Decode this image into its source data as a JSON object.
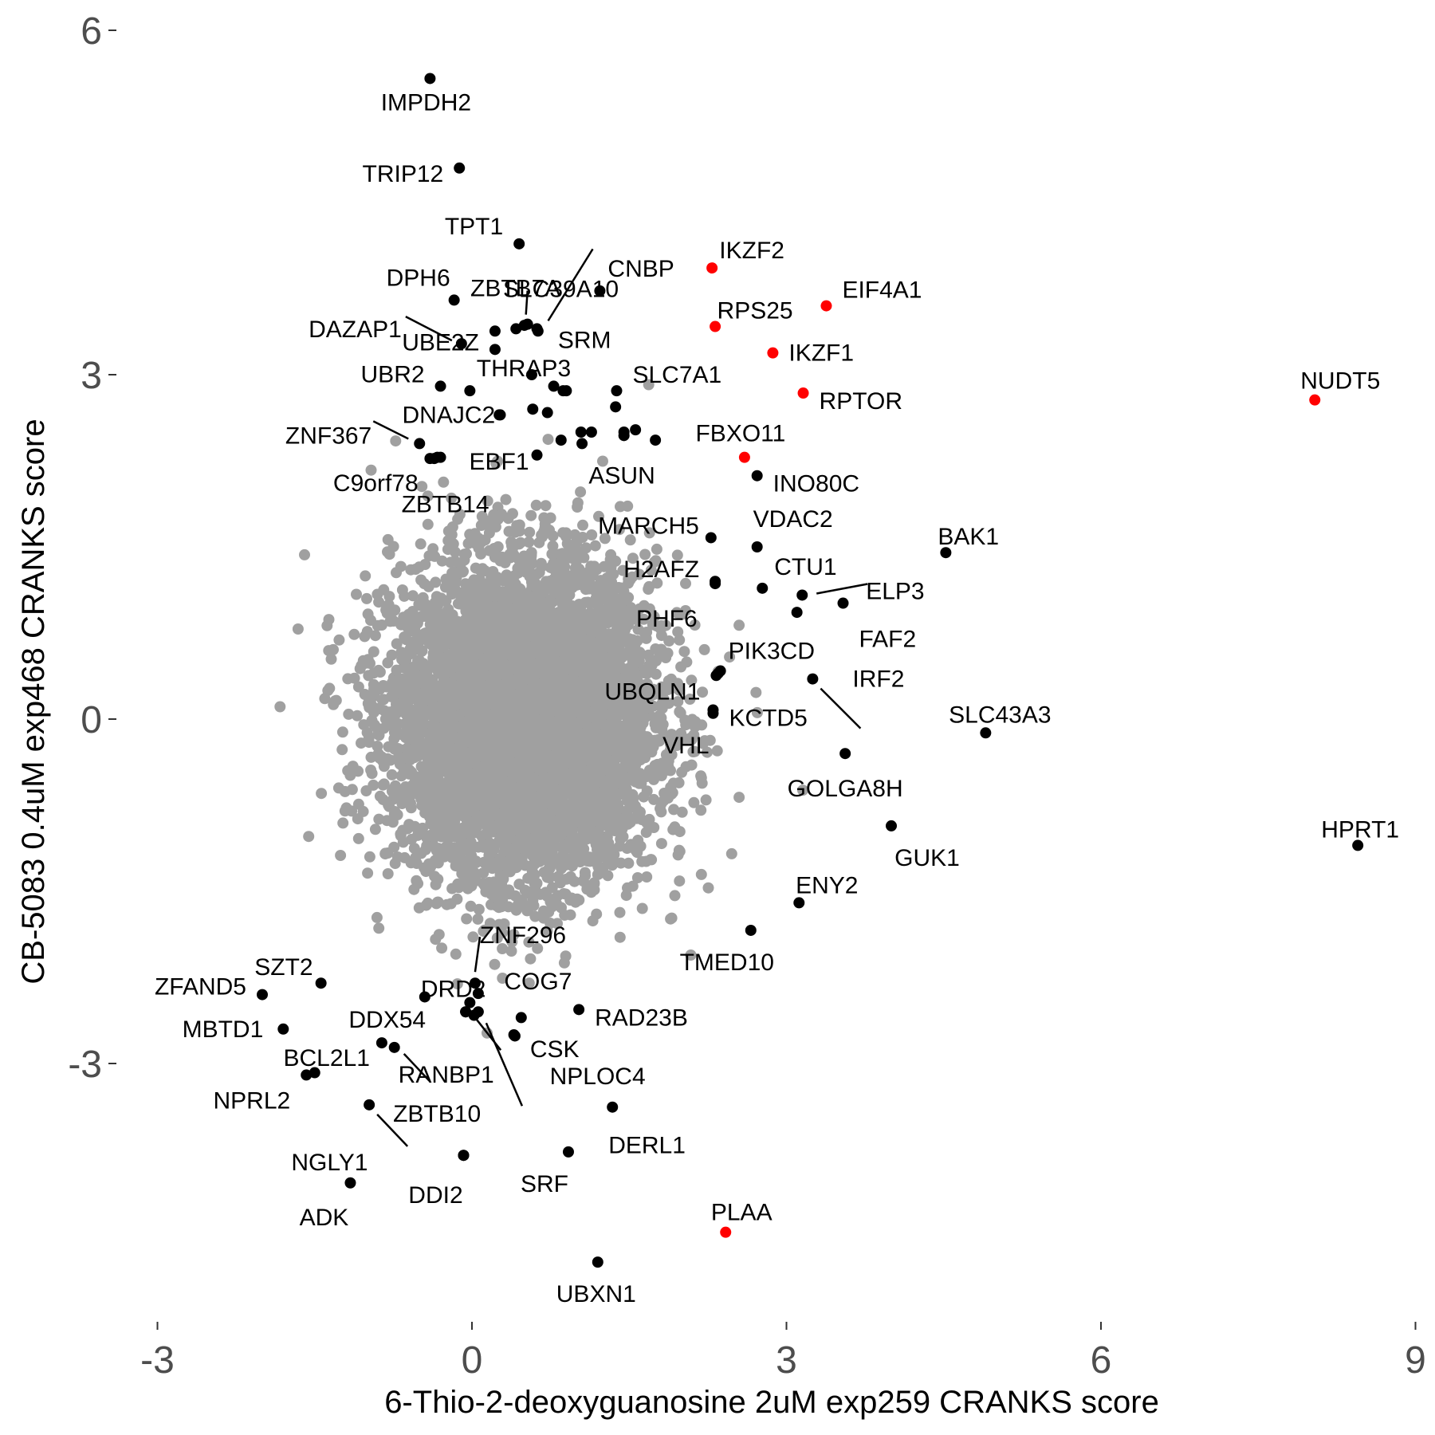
{
  "chart_data": {
    "type": "scatter",
    "xlabel": "6-Thio-2-deoxyguanosine 2uM exp259 CRANKS score",
    "ylabel": "CB-5083 0.4uM exp468 CRANKS score",
    "xlim": [
      -3.3,
      9.0
    ],
    "ylim": [
      -5.2,
      6.1
    ],
    "x_ticks": [
      {
        "value": -3,
        "label": "-3"
      },
      {
        "value": 0,
        "label": "0"
      },
      {
        "value": 3,
        "label": "3"
      },
      {
        "value": 6,
        "label": "6"
      },
      {
        "value": 9,
        "label": "9"
      }
    ],
    "y_ticks": [
      {
        "value": -3,
        "label": "-3"
      },
      {
        "value": 0,
        "label": "0"
      },
      {
        "value": 3,
        "label": "3"
      },
      {
        "value": 6,
        "label": "6"
      }
    ],
    "grid": false,
    "legend": "none",
    "colors": {
      "background_points": "#a0a0a0",
      "highlight_points": "#000000",
      "red_points": "#ff0000"
    },
    "background_cloud": {
      "description_points": "~18000 gray genes, centred near (0.5, 0), sd ~0.65 x, ~0.7 y"
    },
    "labeled_points": [
      {
        "gene": "IMPDH2",
        "x": -0.4,
        "y": 5.58,
        "color": "black"
      },
      {
        "gene": "TRIP12",
        "x": -0.12,
        "y": 4.8,
        "color": "black"
      },
      {
        "gene": "TPT1",
        "x": 0.45,
        "y": 4.14,
        "color": "black"
      },
      {
        "gene": "SLC39A10",
        "x": 0.62,
        "y": 3.4,
        "color": "black"
      },
      {
        "gene": "ZBTB7A",
        "x": 0.53,
        "y": 3.44,
        "color": "black"
      },
      {
        "gene": "CNBP",
        "x": 1.22,
        "y": 3.73,
        "color": "black"
      },
      {
        "gene": "DPH6",
        "x": -0.17,
        "y": 3.65,
        "color": "black"
      },
      {
        "gene": "UBE2Z",
        "x": 0.22,
        "y": 3.38,
        "color": "black"
      },
      {
        "gene": "SRM",
        "x": 0.63,
        "y": 3.38,
        "color": "black"
      },
      {
        "gene": "DAZAP1",
        "x": -0.1,
        "y": 3.27,
        "color": "black"
      },
      {
        "gene": "UBR2",
        "x": -0.3,
        "y": 2.9,
        "color": "black"
      },
      {
        "gene": "THRAP3",
        "x": 0.57,
        "y": 3.0,
        "color": "black"
      },
      {
        "gene": "SLC7A1",
        "x": 1.38,
        "y": 2.86,
        "color": "black"
      },
      {
        "gene": "DNAJC2",
        "x": 0.26,
        "y": 2.65,
        "color": "black"
      },
      {
        "gene": "ZNF367",
        "x": -0.5,
        "y": 2.4,
        "color": "black"
      },
      {
        "gene": "C9orf78",
        "x": -0.36,
        "y": 2.27,
        "color": "black"
      },
      {
        "gene": "EBF1",
        "x": 0.62,
        "y": 2.3,
        "color": "black"
      },
      {
        "gene": "ASUN",
        "x": 1.05,
        "y": 2.4,
        "color": "black"
      },
      {
        "gene": "ZBTB14",
        "x": -0.33,
        "y": 2.28,
        "color": "black"
      },
      {
        "gene": "INO80C",
        "x": 2.72,
        "y": 2.12,
        "color": "black"
      },
      {
        "gene": "MARCH5",
        "x": 2.28,
        "y": 1.58,
        "color": "black"
      },
      {
        "gene": "VDAC2",
        "x": 2.72,
        "y": 1.5,
        "color": "black"
      },
      {
        "gene": "BAK1",
        "x": 4.52,
        "y": 1.45,
        "color": "black"
      },
      {
        "gene": "H2AFZ",
        "x": 2.32,
        "y": 1.2,
        "color": "black"
      },
      {
        "gene": "CTU1",
        "x": 2.77,
        "y": 1.14,
        "color": "black"
      },
      {
        "gene": "ELP3",
        "x": 3.15,
        "y": 1.08,
        "color": "black"
      },
      {
        "gene": "FAF2",
        "x": 3.54,
        "y": 1.01,
        "color": "black"
      },
      {
        "gene": "PHF6",
        "x": 3.1,
        "y": 0.93,
        "color": "black"
      },
      {
        "gene": "IRF2",
        "x": 3.25,
        "y": 0.35,
        "color": "black"
      },
      {
        "gene": "PIK3CD",
        "x": 2.37,
        "y": 0.42,
        "color": "black"
      },
      {
        "gene": "UBQLN1",
        "x": 2.33,
        "y": 0.38,
        "color": "black"
      },
      {
        "gene": "KCTD5",
        "x": 2.3,
        "y": 0.08,
        "color": "black"
      },
      {
        "gene": "VHL",
        "x": 2.3,
        "y": 0.05,
        "color": "black"
      },
      {
        "gene": "SLC43A3",
        "x": 4.9,
        "y": -0.12,
        "color": "black"
      },
      {
        "gene": "GOLGA8H",
        "x": 3.56,
        "y": -0.3,
        "color": "black"
      },
      {
        "gene": "GUK1",
        "x": 4.0,
        "y": -0.93,
        "color": "black"
      },
      {
        "gene": "HPRT1",
        "x": 8.45,
        "y": -1.1,
        "color": "black"
      },
      {
        "gene": "ENY2",
        "x": 3.12,
        "y": -1.6,
        "color": "black"
      },
      {
        "gene": "TMED10",
        "x": 2.66,
        "y": -1.84,
        "color": "black"
      },
      {
        "gene": "ZNF296",
        "x": 0.03,
        "y": -2.3,
        "color": "black"
      },
      {
        "gene": "COG7",
        "x": 0.06,
        "y": -2.39,
        "color": "black"
      },
      {
        "gene": "RAD23B",
        "x": 1.02,
        "y": -2.53,
        "color": "black"
      },
      {
        "gene": "SZT2",
        "x": -1.44,
        "y": -2.3,
        "color": "black"
      },
      {
        "gene": "ZFAND5",
        "x": -2.0,
        "y": -2.4,
        "color": "black"
      },
      {
        "gene": "DRD2",
        "x": -0.45,
        "y": -2.42,
        "color": "black"
      },
      {
        "gene": "DDX54",
        "x": -0.06,
        "y": -2.55,
        "color": "black"
      },
      {
        "gene": "MBTD1",
        "x": -1.8,
        "y": -2.7,
        "color": "black"
      },
      {
        "gene": "NPLOC4",
        "x": 0.4,
        "y": -2.75,
        "color": "black"
      },
      {
        "gene": "BCL2L1",
        "x": -0.86,
        "y": -2.82,
        "color": "black"
      },
      {
        "gene": "RANBP1",
        "x": -0.74,
        "y": -2.86,
        "color": "black"
      },
      {
        "gene": "NPRL2",
        "x": -1.58,
        "y": -3.1,
        "color": "black"
      },
      {
        "gene": "ZBTB10",
        "x": -0.98,
        "y": -3.36,
        "color": "black"
      },
      {
        "gene": "CSK",
        "x": 0.06,
        "y": -2.55,
        "color": "black"
      },
      {
        "gene": "DERL1",
        "x": 1.34,
        "y": -3.38,
        "color": "black"
      },
      {
        "gene": "NGLY1",
        "x": -0.08,
        "y": -3.8,
        "color": "black"
      },
      {
        "gene": "DDI2",
        "x": -0.08,
        "y": -3.8,
        "color": "black"
      },
      {
        "gene": "SRF",
        "x": 0.92,
        "y": -3.77,
        "color": "black"
      },
      {
        "gene": "ADK",
        "x": -1.16,
        "y": -4.04,
        "color": "black"
      },
      {
        "gene": "UBXN1",
        "x": 1.2,
        "y": -4.73,
        "color": "black"
      },
      {
        "gene": "IKZF2",
        "x": 2.29,
        "y": 3.93,
        "color": "red"
      },
      {
        "gene": "EIF4A1",
        "x": 3.38,
        "y": 3.6,
        "color": "red"
      },
      {
        "gene": "RPS25",
        "x": 2.32,
        "y": 3.42,
        "color": "red"
      },
      {
        "gene": "IKZF1",
        "x": 2.87,
        "y": 3.19,
        "color": "red"
      },
      {
        "gene": "RPTOR",
        "x": 3.16,
        "y": 2.84,
        "color": "red"
      },
      {
        "gene": "FBXO11",
        "x": 2.6,
        "y": 2.28,
        "color": "red"
      },
      {
        "gene": "NUDT5",
        "x": 8.04,
        "y": 2.78,
        "color": "red"
      },
      {
        "gene": "PLAA",
        "x": 2.42,
        "y": -4.47,
        "color": "red"
      }
    ],
    "extra_black_points": [
      [
        0.22,
        3.22
      ],
      [
        0.5,
        3.43
      ],
      [
        0.42,
        3.4
      ],
      [
        -0.02,
        2.86
      ],
      [
        0.78,
        2.9
      ],
      [
        0.87,
        2.86
      ],
      [
        0.9,
        2.86
      ],
      [
        1.37,
        2.72
      ],
      [
        0.58,
        2.7
      ],
      [
        0.72,
        2.67
      ],
      [
        1.45,
        2.5
      ],
      [
        1.56,
        2.52
      ],
      [
        1.75,
        2.43
      ],
      [
        1.14,
        2.5
      ],
      [
        0.85,
        2.43
      ],
      [
        1.04,
        2.5
      ],
      [
        -0.4,
        2.27
      ],
      [
        -0.3,
        2.28
      ],
      [
        1.45,
        2.47
      ],
      [
        0.27,
        2.65
      ],
      [
        2.32,
        1.18
      ],
      [
        2.35,
        0.4
      ],
      [
        -0.06,
        -2.55
      ],
      [
        -0.02,
        -2.47
      ],
      [
        0.47,
        -2.6
      ],
      [
        0.41,
        -2.76
      ],
      [
        -1.5,
        -3.08
      ],
      [
        0.02,
        -2.58
      ]
    ]
  }
}
